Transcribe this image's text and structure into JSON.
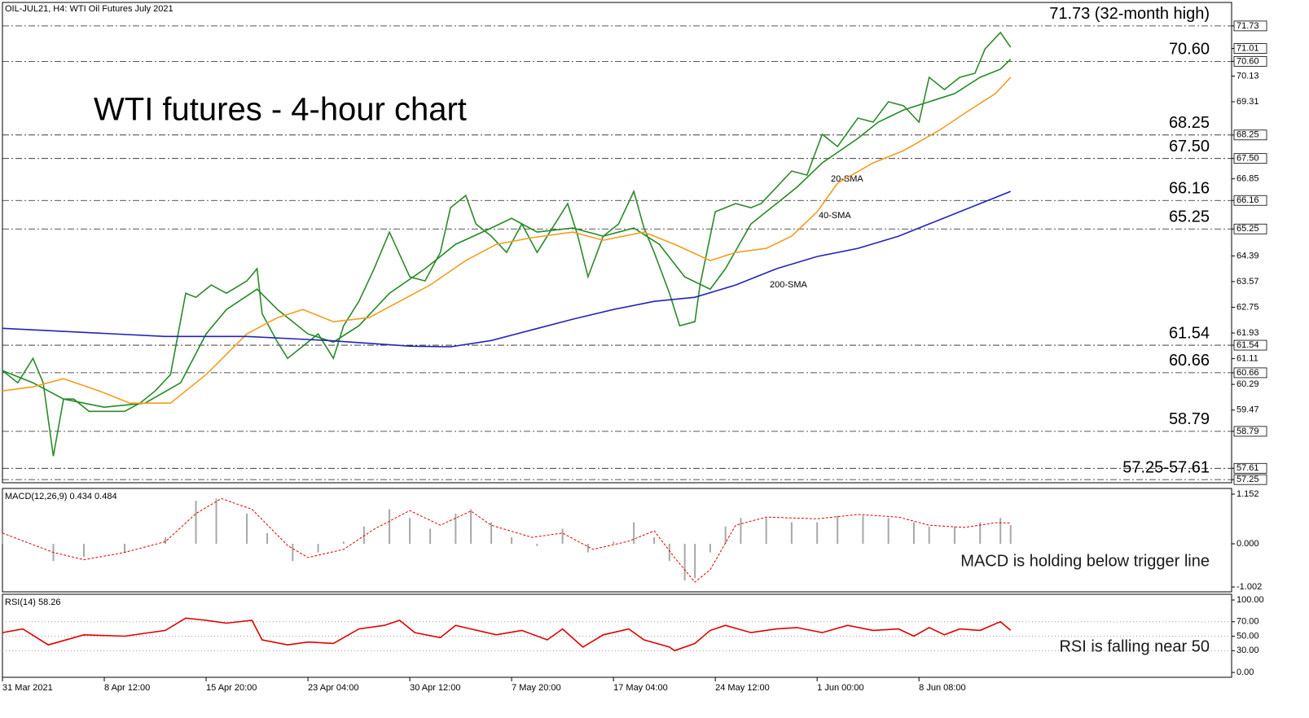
{
  "chart_data": [
    {
      "type": "line",
      "title": "WTI futures - 4-hour chart",
      "subtitle": "OIL-JUL21, H4:  WTI Oil Futures July 2021",
      "xlim": [
        0,
        241.4
      ],
      "ylim": [
        57.15,
        72.48
      ],
      "xticks": [
        {
          "value": 0,
          "label": "31 Mar 2021"
        },
        {
          "value": 20,
          "label": "8 Apr 12:00"
        },
        {
          "value": 40,
          "label": "15 Apr 20:00"
        },
        {
          "value": 60,
          "label": "23 Apr 04:00"
        },
        {
          "value": 80,
          "label": "30 Apr 12:00"
        },
        {
          "value": 100,
          "label": "7 May 20:00"
        },
        {
          "value": 120,
          "label": "17 May 04:00"
        },
        {
          "value": 140,
          "label": "24 May 12:00"
        },
        {
          "value": 160,
          "label": "1 Jun 00:00"
        },
        {
          "value": 180,
          "label": "8 Jun 08:00"
        }
      ],
      "yticks": [
        {
          "value": 71.73,
          "label": "71.73",
          "highlight": true
        },
        {
          "value": 71.01,
          "label": "71.01",
          "highlight": true
        },
        {
          "value": 70.6,
          "label": "70.60",
          "highlight": true
        },
        {
          "value": 70.13,
          "label": "70.13"
        },
        {
          "value": 69.31,
          "label": "69.31"
        },
        {
          "value": 68.25,
          "label": "68.25",
          "highlight": true
        },
        {
          "value": 67.5,
          "label": "67.50",
          "highlight": true
        },
        {
          "value": 66.85,
          "label": "66.85"
        },
        {
          "value": 66.16,
          "label": "66.16",
          "highlight": true
        },
        {
          "value": 65.25,
          "label": "65.25",
          "highlight": true
        },
        {
          "value": 64.39,
          "label": "64.39"
        },
        {
          "value": 63.57,
          "label": "63.57"
        },
        {
          "value": 62.75,
          "label": "62.75"
        },
        {
          "value": 61.93,
          "label": "61.93"
        },
        {
          "value": 61.54,
          "label": "61.54",
          "highlight": true
        },
        {
          "value": 61.11,
          "label": "61.11"
        },
        {
          "value": 60.66,
          "label": "60.66",
          "highlight": true
        },
        {
          "value": 60.29,
          "label": "60.29"
        },
        {
          "value": 59.47,
          "label": "59.47"
        },
        {
          "value": 58.79,
          "label": "58.79",
          "highlight": true
        },
        {
          "value": 57.61,
          "label": "57.61",
          "highlight": true
        },
        {
          "value": 57.25,
          "label": "57.25",
          "highlight": true
        }
      ],
      "levels": [
        {
          "values": [
            71.73
          ],
          "label": "71.73 (32-month high)",
          "color": "#e8262a"
        },
        {
          "values": [
            70.6
          ],
          "label": "70.60",
          "color": "#2a7a1a"
        },
        {
          "values": [
            68.25
          ],
          "label": "68.25",
          "color": "#2a7a1a"
        },
        {
          "values": [
            67.5
          ],
          "label": "67.50",
          "color": "#2a7a1a"
        },
        {
          "values": [
            66.16
          ],
          "label": "66.16",
          "color": "#2a7a1a"
        },
        {
          "values": [
            65.25
          ],
          "label": "65.25",
          "color": "#2a7a1a"
        },
        {
          "values": [
            61.54
          ],
          "label": "61.54",
          "color": "#2a7a1a"
        },
        {
          "values": [
            60.66
          ],
          "label": "60.66",
          "color": "#2a7a1a"
        },
        {
          "values": [
            58.79
          ],
          "label": "58.79",
          "color": "#2a7a1a"
        },
        {
          "values": [
            57.25,
            57.61
          ],
          "label": "57.25-57.61",
          "color": "#2a7a1a"
        }
      ],
      "series": [
        {
          "type": "line",
          "color": "#2b8a2b",
          "x": [
            0,
            3,
            6,
            8,
            10,
            12,
            14,
            17,
            20,
            24,
            27,
            30,
            33,
            36,
            38,
            41,
            44,
            48,
            50,
            51,
            54,
            56,
            59,
            62,
            65,
            67,
            70,
            73,
            76,
            80,
            83,
            86,
            88,
            91,
            93,
            96,
            99,
            102,
            105,
            108,
            111,
            113,
            115,
            118,
            121,
            124,
            126,
            128,
            131,
            133,
            136,
            137,
            140,
            144,
            147,
            149,
            152,
            155,
            158,
            161,
            164,
            168,
            171,
            174,
            177,
            180,
            182,
            185,
            188,
            191,
            193,
            196,
            198
          ],
          "values": [
            60.73,
            60.34,
            61.12,
            60.34,
            58.0,
            59.82,
            59.82,
            59.43,
            59.43,
            59.43,
            59.69,
            60.08,
            60.6,
            63.2,
            63.07,
            63.46,
            63.2,
            63.59,
            63.98,
            62.55,
            61.64,
            61.12,
            61.51,
            61.9,
            61.12,
            62.16,
            62.94,
            63.98,
            65.15,
            63.72,
            63.59,
            64.5,
            65.93,
            66.32,
            65.41,
            65.02,
            64.5,
            65.41,
            64.5,
            65.28,
            66.06,
            65.02,
            63.72,
            65.02,
            65.41,
            66.45,
            65.28,
            64.5,
            63.2,
            62.16,
            62.29,
            63.46,
            65.8,
            66.06,
            65.93,
            66.06,
            66.58,
            67.1,
            66.97,
            68.27,
            67.88,
            68.79,
            68.66,
            69.31,
            69.18,
            68.66,
            70.09,
            69.7,
            70.09,
            70.22,
            71.0,
            71.52,
            71.05
          ]
        },
        {
          "type": "line",
          "name": "20-SMA",
          "color": "#228b22",
          "x": [
            0,
            6,
            12,
            20,
            28,
            35,
            40,
            44,
            50,
            54,
            60,
            65,
            70,
            76,
            83,
            89,
            96,
            100,
            105,
            112,
            118,
            124,
            129,
            134,
            139,
            142,
            147,
            152,
            156,
            161,
            168,
            172,
            177,
            182,
            187,
            192,
            196,
            198
          ],
          "values": [
            60.73,
            60.34,
            59.82,
            59.56,
            59.69,
            60.34,
            61.9,
            62.68,
            63.33,
            62.68,
            61.9,
            61.64,
            62.16,
            63.2,
            63.98,
            64.76,
            65.28,
            65.59,
            65.15,
            65.28,
            65.02,
            65.28,
            64.76,
            63.72,
            63.33,
            63.98,
            65.41,
            66.06,
            66.58,
            67.36,
            68.14,
            68.66,
            69.05,
            69.31,
            69.57,
            70.09,
            70.35,
            70.67
          ]
        },
        {
          "type": "line",
          "name": "40-SMA",
          "color": "#f39c1f",
          "x": [
            0,
            6,
            12,
            19,
            25,
            33,
            40,
            48,
            54,
            59,
            65,
            72,
            78,
            84,
            91,
            97,
            104,
            112,
            118,
            126,
            132,
            139,
            144,
            150,
            155,
            160,
            164,
            171,
            177,
            184,
            190,
            195,
            198
          ],
          "values": [
            60.08,
            60.21,
            60.47,
            60.08,
            59.69,
            59.69,
            60.6,
            61.9,
            62.42,
            62.68,
            62.29,
            62.42,
            62.94,
            63.46,
            64.24,
            64.76,
            64.97,
            65.15,
            64.89,
            65.15,
            64.76,
            64.24,
            64.5,
            64.63,
            65.02,
            65.8,
            66.71,
            67.36,
            67.75,
            68.4,
            69.05,
            69.57,
            70.09
          ]
        },
        {
          "type": "line",
          "name": "200-SMA",
          "color": "#2323b8",
          "x": [
            0,
            16,
            32,
            48,
            64,
            80,
            88,
            96,
            104,
            112,
            120,
            128,
            136,
            144,
            152,
            160,
            168,
            176,
            184,
            192,
            198
          ],
          "values": [
            62.08,
            61.95,
            61.82,
            61.82,
            61.69,
            61.51,
            61.49,
            61.69,
            62.03,
            62.37,
            62.68,
            62.94,
            63.07,
            63.46,
            63.98,
            64.37,
            64.63,
            65.02,
            65.54,
            66.06,
            66.45
          ]
        }
      ]
    },
    {
      "type": "bar",
      "title": "MACD(12,26,9) 0.434 0.484",
      "ylim": [
        -1.114,
        1.284
      ],
      "yticks": [
        {
          "value": 1.152,
          "label": "1.152"
        },
        {
          "value": 0,
          "label": "0.000"
        },
        {
          "value": -1.002,
          "label": "-1.002"
        }
      ],
      "annotation": "MACD is holding below trigger line",
      "series": [
        {
          "type": "bar",
          "color": "#a8a8a8",
          "x": [
            0,
            10,
            16,
            24,
            32,
            38,
            42,
            48,
            52,
            57,
            62,
            67,
            71,
            76,
            80,
            84,
            89,
            92,
            96,
            100,
            105,
            110,
            115,
            120,
            124,
            128,
            131,
            134,
            136,
            139,
            142,
            145,
            150,
            155,
            160,
            164,
            169,
            174,
            179,
            182,
            187,
            192,
            196,
            198
          ],
          "values": [
            0.25,
            -0.4,
            -0.3,
            -0.2,
            0.15,
            1.0,
            1.05,
            0.7,
            0.25,
            -0.4,
            -0.2,
            0.05,
            0.4,
            0.8,
            0.6,
            0.35,
            0.7,
            0.8,
            0.5,
            0.15,
            -0.05,
            0.35,
            -0.2,
            0.05,
            0.5,
            0.15,
            -0.4,
            -0.85,
            -0.8,
            -0.2,
            0.4,
            0.6,
            0.6,
            0.5,
            0.5,
            0.65,
            0.65,
            0.6,
            0.5,
            0.4,
            0.4,
            0.5,
            0.6,
            0.434
          ]
        },
        {
          "type": "line",
          "color": "#e00000",
          "dashed": true,
          "x": [
            0,
            10,
            16,
            24,
            32,
            38,
            43,
            49,
            56,
            60,
            67,
            73,
            80,
            86,
            92,
            96,
            104,
            110,
            116,
            123,
            128,
            132,
            136,
            139,
            144,
            150,
            160,
            168,
            176,
            182,
            189,
            195,
            198
          ],
          "values": [
            0.25,
            -0.2,
            -0.37,
            -0.2,
            0.05,
            0.7,
            1.05,
            0.8,
            -0.04,
            -0.32,
            -0.13,
            0.34,
            0.77,
            0.43,
            0.76,
            0.43,
            0.15,
            0.25,
            -0.13,
            0.06,
            0.3,
            -0.32,
            -0.89,
            -0.6,
            0.43,
            0.62,
            0.58,
            0.68,
            0.62,
            0.43,
            0.38,
            0.49,
            0.484
          ]
        }
      ]
    },
    {
      "type": "line",
      "title": "RSI(14) 58.26",
      "ylim": [
        -6.7,
        107.9
      ],
      "yticks": [
        {
          "value": 100,
          "label": "100.00"
        },
        {
          "value": 70,
          "label": "70.00"
        },
        {
          "value": 50,
          "label": "50.00"
        },
        {
          "value": 30,
          "label": "30.00"
        },
        {
          "value": 0,
          "label": "0.00"
        }
      ],
      "grid_levels": [
        30,
        50,
        70
      ],
      "annotation": "RSI is falling near 50",
      "series": [
        {
          "type": "line",
          "color": "#e00000",
          "x": [
            0,
            4,
            9,
            16,
            24,
            32,
            36,
            40,
            44,
            49,
            51,
            56,
            60,
            65,
            70,
            75,
            78,
            81,
            86,
            89,
            92,
            97,
            102,
            107,
            110,
            114,
            118,
            123,
            126,
            131,
            132,
            136,
            139,
            142,
            147,
            152,
            156,
            161,
            166,
            171,
            176,
            179,
            182,
            185,
            188,
            192,
            196,
            198
          ],
          "values": [
            55,
            60,
            38,
            52,
            50,
            58,
            75,
            72,
            68,
            72,
            45,
            38,
            42,
            40,
            60,
            65,
            72,
            55,
            48,
            65,
            60,
            52,
            58,
            45,
            60,
            35,
            52,
            60,
            45,
            35,
            30,
            40,
            58,
            65,
            55,
            60,
            62,
            55,
            65,
            58,
            60,
            50,
            62,
            52,
            60,
            58,
            70,
            58.26
          ]
        }
      ]
    }
  ]
}
